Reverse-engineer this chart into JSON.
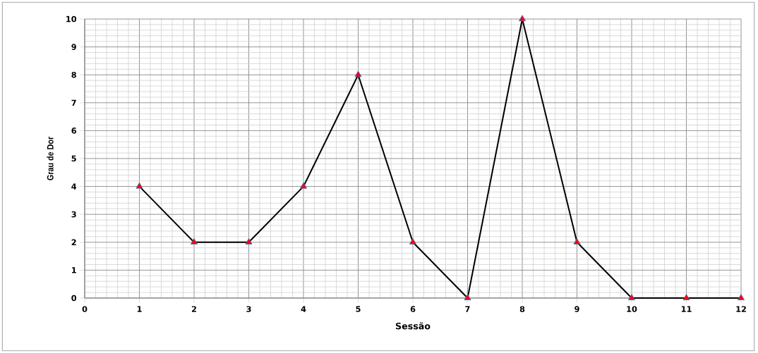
{
  "chart_data": {
    "type": "line",
    "xlabel": "Sessão",
    "ylabel": "Grau de Dor",
    "x": [
      1,
      2,
      3,
      4,
      5,
      6,
      7,
      8,
      9,
      10,
      11,
      12
    ],
    "series": [
      {
        "color": "#000000",
        "values": [
          4,
          2,
          2,
          4,
          8,
          2,
          0,
          10,
          2,
          0,
          0,
          0
        ]
      }
    ],
    "xlim": [
      0,
      12
    ],
    "ylim": [
      0,
      10
    ],
    "xticks": [
      0,
      1,
      2,
      3,
      4,
      5,
      6,
      7,
      8,
      9,
      10,
      11,
      12
    ],
    "yticks": [
      0,
      1,
      2,
      3,
      4,
      5,
      6,
      7,
      8,
      9,
      10
    ],
    "grid": true,
    "marker": "triangle",
    "line_style": "solid"
  }
}
